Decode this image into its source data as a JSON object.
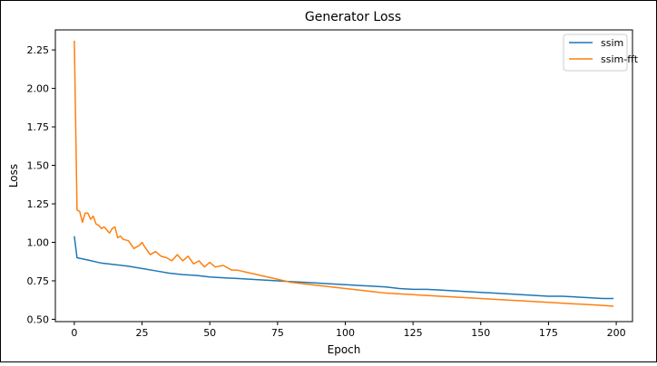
{
  "chart_data": {
    "type": "line",
    "title": "Generator Loss",
    "xlabel": "Epoch",
    "ylabel": "Loss",
    "xlim": [
      -7,
      206
    ],
    "ylim": [
      0.485,
      2.38
    ],
    "xticks": [
      0,
      25,
      50,
      75,
      100,
      125,
      150,
      175,
      200
    ],
    "yticks": [
      0.5,
      0.75,
      1.0,
      1.25,
      1.5,
      1.75,
      2.0,
      2.25
    ],
    "ytick_labels": [
      "0.50",
      "0.75",
      "1.00",
      "1.25",
      "1.50",
      "1.75",
      "2.00",
      "2.25"
    ],
    "grid": false,
    "legend": {
      "position": "top-right"
    },
    "series": [
      {
        "name": "ssim",
        "color": "#1f77b4",
        "x": [
          0,
          1,
          5,
          10,
          15,
          20,
          25,
          30,
          35,
          40,
          45,
          50,
          55,
          60,
          65,
          70,
          75,
          80,
          85,
          90,
          95,
          100,
          105,
          110,
          115,
          120,
          125,
          130,
          135,
          140,
          145,
          150,
          155,
          160,
          165,
          170,
          175,
          180,
          185,
          190,
          195,
          199
        ],
        "y": [
          1.04,
          0.9,
          0.885,
          0.865,
          0.855,
          0.845,
          0.83,
          0.815,
          0.8,
          0.79,
          0.785,
          0.775,
          0.77,
          0.765,
          0.76,
          0.755,
          0.75,
          0.745,
          0.74,
          0.735,
          0.73,
          0.725,
          0.72,
          0.715,
          0.71,
          0.7,
          0.695,
          0.695,
          0.69,
          0.685,
          0.68,
          0.675,
          0.67,
          0.665,
          0.66,
          0.655,
          0.65,
          0.65,
          0.645,
          0.64,
          0.635,
          0.635
        ]
      },
      {
        "name": "ssim-fft",
        "color": "#ff7f0e",
        "x": [
          0,
          1,
          2,
          3,
          4,
          5,
          6,
          7,
          8,
          9,
          10,
          11,
          12,
          13,
          14,
          15,
          16,
          17,
          18,
          20,
          22,
          24,
          25,
          26,
          28,
          30,
          32,
          34,
          36,
          38,
          40,
          42,
          44,
          46,
          48,
          50,
          52,
          55,
          58,
          60,
          65,
          70,
          75,
          80,
          85,
          90,
          95,
          100,
          105,
          110,
          115,
          120,
          125,
          130,
          135,
          140,
          145,
          150,
          155,
          160,
          165,
          170,
          175,
          180,
          185,
          190,
          195,
          199
        ],
        "y": [
          2.31,
          1.21,
          1.2,
          1.13,
          1.19,
          1.19,
          1.15,
          1.17,
          1.12,
          1.11,
          1.09,
          1.1,
          1.08,
          1.06,
          1.09,
          1.1,
          1.03,
          1.04,
          1.02,
          1.01,
          0.96,
          0.98,
          1.0,
          0.97,
          0.92,
          0.94,
          0.91,
          0.9,
          0.88,
          0.92,
          0.88,
          0.91,
          0.86,
          0.88,
          0.84,
          0.87,
          0.84,
          0.85,
          0.82,
          0.82,
          0.8,
          0.78,
          0.76,
          0.74,
          0.73,
          0.72,
          0.71,
          0.7,
          0.69,
          0.68,
          0.67,
          0.665,
          0.66,
          0.655,
          0.65,
          0.645,
          0.64,
          0.635,
          0.63,
          0.625,
          0.62,
          0.615,
          0.61,
          0.605,
          0.6,
          0.595,
          0.59,
          0.585
        ]
      }
    ]
  }
}
